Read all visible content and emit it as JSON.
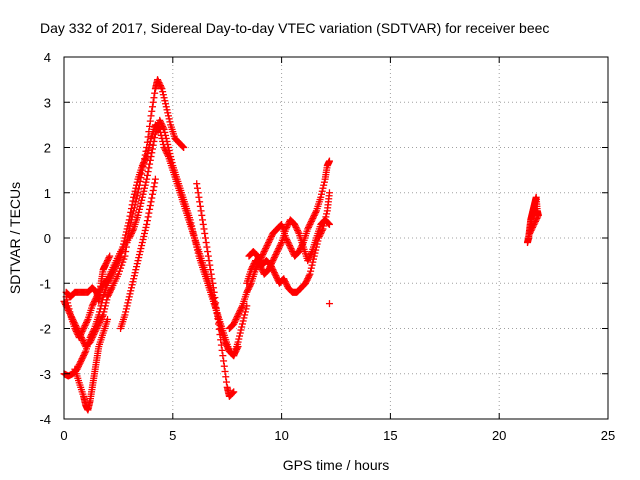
{
  "chart_data": {
    "type": "scatter",
    "title": "Day 332 of 2017, Sidereal Day-to-day VTEC variation (SDTVAR) for receiver beec",
    "xlabel": "GPS time / hours",
    "ylabel": "SDTVAR / TECUs",
    "xlim": [
      0,
      25
    ],
    "ylim": [
      -4,
      4
    ],
    "x_ticks": [
      "0",
      "5",
      "10",
      "15",
      "20",
      "25"
    ],
    "y_ticks": [
      "-4",
      "-3",
      "-2",
      "-1",
      "0",
      "1",
      "2",
      "3",
      "4"
    ],
    "grid": true,
    "legend": "none",
    "marker": "+",
    "color": "#ff0000",
    "series": [
      {
        "values": [
          [
            0.0,
            -1.4
          ],
          [
            0.2,
            -1.6
          ],
          [
            0.4,
            -1.8
          ],
          [
            0.6,
            -2.0
          ],
          [
            0.8,
            -2.2
          ],
          [
            1.0,
            -2.4
          ],
          [
            1.2,
            -2.3
          ],
          [
            1.4,
            -2.1
          ],
          [
            1.6,
            -1.9
          ],
          [
            1.8,
            -1.7
          ],
          [
            2.0,
            -1.3
          ],
          [
            2.2,
            -1.1
          ],
          [
            2.5,
            -0.8
          ],
          [
            2.8,
            -0.4
          ],
          [
            3.0,
            0.2
          ],
          [
            3.2,
            0.6
          ],
          [
            3.4,
            1.0
          ],
          [
            3.6,
            1.5
          ],
          [
            3.8,
            2.0
          ],
          [
            4.0,
            2.7
          ],
          [
            4.2,
            3.3
          ],
          [
            4.3,
            3.5
          ],
          [
            4.5,
            3.3
          ],
          [
            4.7,
            2.9
          ],
          [
            4.9,
            2.5
          ],
          [
            5.1,
            2.2
          ],
          [
            5.3,
            2.1
          ],
          [
            5.5,
            2.0
          ]
        ]
      },
      {
        "values": [
          [
            0.0,
            -3.0
          ],
          [
            0.2,
            -3.05
          ],
          [
            0.4,
            -3.0
          ],
          [
            0.6,
            -2.9
          ],
          [
            0.8,
            -2.7
          ],
          [
            1.0,
            -2.5
          ],
          [
            1.2,
            -2.2
          ],
          [
            1.4,
            -2.0
          ],
          [
            1.6,
            -1.7
          ],
          [
            1.8,
            -1.3
          ],
          [
            2.0,
            -1.0
          ],
          [
            2.2,
            -0.8
          ],
          [
            2.4,
            -0.6
          ],
          [
            2.6,
            -0.4
          ],
          [
            2.8,
            0.0
          ],
          [
            3.0,
            0.4
          ],
          [
            3.2,
            0.9
          ],
          [
            3.4,
            1.3
          ],
          [
            3.6,
            1.6
          ],
          [
            3.8,
            1.8
          ],
          [
            4.0,
            2.2
          ],
          [
            4.2,
            2.5
          ],
          [
            4.4,
            2.4
          ],
          [
            4.6,
            2.0
          ],
          [
            4.8,
            1.8
          ],
          [
            5.0,
            1.5
          ],
          [
            5.2,
            1.2
          ],
          [
            5.4,
            0.9
          ],
          [
            5.6,
            0.6
          ],
          [
            5.8,
            0.3
          ],
          [
            6.0,
            0.0
          ],
          [
            6.2,
            -0.4
          ],
          [
            6.4,
            -0.7
          ],
          [
            6.6,
            -1.0
          ],
          [
            6.8,
            -1.3
          ],
          [
            7.0,
            -1.6
          ],
          [
            7.2,
            -1.9
          ],
          [
            7.4,
            -2.2
          ],
          [
            7.6,
            -2.5
          ],
          [
            7.8,
            -2.6
          ],
          [
            8.0,
            -2.3
          ],
          [
            8.2,
            -1.9
          ],
          [
            8.4,
            -1.5
          ]
        ]
      },
      {
        "values": [
          [
            0.1,
            -1.3
          ],
          [
            0.3,
            -1.7
          ],
          [
            0.5,
            -2.0
          ],
          [
            0.7,
            -2.2
          ],
          [
            0.9,
            -2.0
          ],
          [
            1.1,
            -1.8
          ],
          [
            1.3,
            -1.5
          ],
          [
            1.5,
            -1.3
          ],
          [
            1.7,
            -1.1
          ],
          [
            2.0,
            -0.9
          ],
          [
            2.3,
            -0.6
          ],
          [
            2.6,
            -0.3
          ],
          [
            3.0,
            0.0
          ],
          [
            3.2,
            0.2
          ],
          [
            3.4,
            0.5
          ],
          [
            3.6,
            0.9
          ],
          [
            3.8,
            1.3
          ],
          [
            4.0,
            1.8
          ],
          [
            4.2,
            2.3
          ],
          [
            4.4,
            2.6
          ],
          [
            4.6,
            2.4
          ],
          [
            4.8,
            2.0
          ],
          [
            5.0,
            1.6
          ],
          [
            5.2,
            1.3
          ],
          [
            5.4,
            1.0
          ],
          [
            5.6,
            0.7
          ],
          [
            5.8,
            0.4
          ],
          [
            6.0,
            0.0
          ],
          [
            6.2,
            -0.3
          ],
          [
            6.4,
            -0.6
          ],
          [
            6.6,
            -0.9
          ],
          [
            6.8,
            -1.2
          ],
          [
            7.0,
            -1.6
          ],
          [
            7.2,
            -2.0
          ],
          [
            7.4,
            -2.3
          ],
          [
            7.6,
            -2.5
          ],
          [
            7.8,
            -2.6
          ],
          [
            8.0,
            -2.4
          ]
        ]
      },
      {
        "values": [
          [
            0.1,
            -1.2
          ],
          [
            0.3,
            -1.3
          ],
          [
            0.5,
            -1.2
          ],
          [
            0.8,
            -1.2
          ],
          [
            1.1,
            -1.2
          ],
          [
            1.3,
            -1.1
          ],
          [
            1.5,
            -1.2
          ],
          [
            1.6,
            -1.4
          ],
          [
            1.7,
            -1.0
          ],
          [
            1.8,
            -0.7
          ],
          [
            1.9,
            -0.6
          ],
          [
            2.1,
            -0.4
          ]
        ]
      },
      {
        "values": [
          [
            0.5,
            -2.9
          ],
          [
            0.7,
            -3.2
          ],
          [
            0.9,
            -3.5
          ],
          [
            1.0,
            -3.7
          ],
          [
            1.1,
            -3.8
          ],
          [
            1.2,
            -3.6
          ],
          [
            1.3,
            -3.3
          ],
          [
            1.4,
            -3.0
          ],
          [
            1.5,
            -2.7
          ],
          [
            1.6,
            -2.4
          ],
          [
            1.8,
            -2.1
          ],
          [
            2.0,
            -1.8
          ]
        ]
      },
      {
        "values": [
          [
            2.6,
            -2.0
          ],
          [
            2.8,
            -1.7
          ],
          [
            3.0,
            -1.3
          ],
          [
            3.2,
            -0.9
          ],
          [
            3.4,
            -0.5
          ],
          [
            3.6,
            -0.1
          ],
          [
            3.8,
            0.3
          ],
          [
            4.0,
            0.8
          ],
          [
            4.2,
            1.3
          ]
        ]
      },
      {
        "values": [
          [
            6.1,
            1.2
          ],
          [
            6.3,
            0.6
          ],
          [
            6.5,
            0.0
          ],
          [
            6.7,
            -0.6
          ],
          [
            6.9,
            -1.2
          ],
          [
            7.1,
            -1.9
          ],
          [
            7.3,
            -2.6
          ],
          [
            7.5,
            -3.3
          ],
          [
            7.6,
            -3.5
          ],
          [
            7.8,
            -3.4
          ]
        ]
      },
      {
        "values": [
          [
            7.6,
            -2.0
          ],
          [
            7.8,
            -1.9
          ],
          [
            8.0,
            -1.7
          ],
          [
            8.2,
            -1.5
          ],
          [
            8.4,
            -1.2
          ],
          [
            8.6,
            -1.0
          ],
          [
            8.8,
            -0.7
          ],
          [
            9.0,
            -0.5
          ],
          [
            9.2,
            -0.3
          ],
          [
            9.4,
            -0.1
          ],
          [
            9.6,
            0.1
          ],
          [
            9.8,
            0.2
          ],
          [
            10.0,
            0.3
          ],
          [
            10.2,
            0.0
          ],
          [
            10.4,
            -0.2
          ],
          [
            10.6,
            -0.4
          ],
          [
            10.8,
            -0.3
          ],
          [
            11.0,
            -0.1
          ],
          [
            11.2,
            0.2
          ],
          [
            11.4,
            0.4
          ],
          [
            11.6,
            0.6
          ],
          [
            11.8,
            0.9
          ],
          [
            12.0,
            1.3
          ],
          [
            12.1,
            1.6
          ],
          [
            12.2,
            1.7
          ]
        ]
      },
      {
        "values": [
          [
            8.4,
            -1.0
          ],
          [
            8.6,
            -0.7
          ],
          [
            8.8,
            -0.5
          ],
          [
            9.0,
            -0.6
          ],
          [
            9.2,
            -0.8
          ],
          [
            9.4,
            -0.7
          ],
          [
            9.6,
            -0.5
          ],
          [
            9.8,
            -0.3
          ],
          [
            10.0,
            -0.1
          ],
          [
            10.2,
            0.2
          ],
          [
            10.4,
            0.4
          ],
          [
            10.6,
            0.3
          ],
          [
            10.8,
            0.1
          ],
          [
            11.0,
            -0.2
          ],
          [
            11.2,
            -0.5
          ],
          [
            11.4,
            -0.3
          ],
          [
            11.6,
            0.0
          ],
          [
            11.8,
            0.3
          ],
          [
            12.0,
            0.4
          ],
          [
            12.2,
            0.3
          ]
        ]
      },
      {
        "values": [
          [
            8.5,
            -0.4
          ],
          [
            8.7,
            -0.3
          ],
          [
            8.9,
            -0.4
          ],
          [
            9.1,
            -0.6
          ],
          [
            9.3,
            -0.5
          ],
          [
            9.5,
            -0.6
          ],
          [
            9.7,
            -0.8
          ],
          [
            9.9,
            -1.0
          ],
          [
            10.1,
            -0.9
          ],
          [
            10.3,
            -1.1
          ],
          [
            10.5,
            -1.2
          ],
          [
            10.7,
            -1.2
          ],
          [
            10.9,
            -1.1
          ],
          [
            11.1,
            -1.0
          ],
          [
            11.3,
            -0.8
          ],
          [
            11.5,
            -0.4
          ],
          [
            11.7,
            0.0
          ],
          [
            11.9,
            0.2
          ],
          [
            12.1,
            0.6
          ],
          [
            12.2,
            1.0
          ]
        ]
      },
      {
        "values": [
          [
            12.2,
            -1.45
          ],
          [
            21.3,
            -0.1
          ],
          [
            21.35,
            0.0
          ],
          [
            21.4,
            0.2
          ],
          [
            21.45,
            0.4
          ],
          [
            21.5,
            0.5
          ],
          [
            21.55,
            0.6
          ],
          [
            21.6,
            0.7
          ],
          [
            21.65,
            0.8
          ],
          [
            21.7,
            0.9
          ],
          [
            21.75,
            0.6
          ],
          [
            21.8,
            0.5
          ],
          [
            21.6,
            0.3
          ],
          [
            21.4,
            0.1
          ],
          [
            21.5,
            0.3
          ]
        ]
      }
    ]
  }
}
